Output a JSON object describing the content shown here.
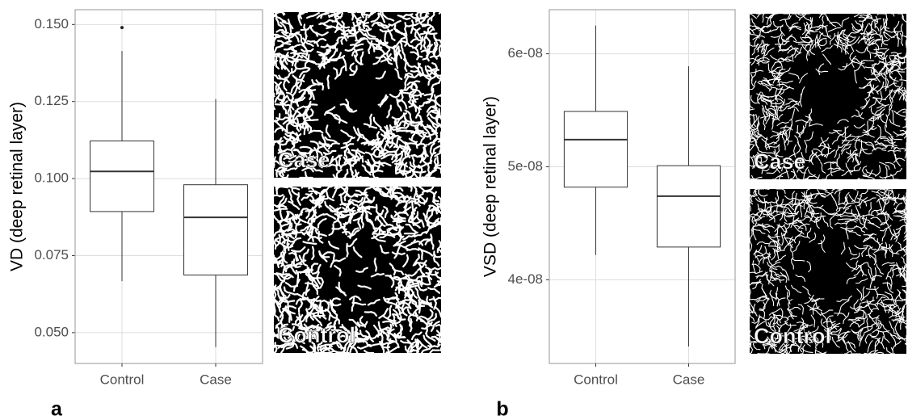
{
  "chart_data": [
    {
      "type": "box",
      "panel_label": "a",
      "ylabel": "VD (deep retinal layer)",
      "categories": [
        "Control",
        "Case"
      ],
      "whisker_low": [
        0.0667,
        0.0453
      ],
      "q1": [
        0.0893,
        0.0687
      ],
      "median": [
        0.1023,
        0.0874
      ],
      "q3": [
        0.1122,
        0.098
      ],
      "whisker_high": [
        0.1414,
        0.1258
      ],
      "outliers": [
        [
          0.149
        ],
        []
      ],
      "ylim": [
        0.04,
        0.1548
      ],
      "yticks": [
        {
          "value": 0.05,
          "label": "0.050"
        },
        0.075,
        {
          "value": 0.1,
          "label": "0.100"
        },
        0.125,
        {
          "value": 0.15,
          "label": "0.150"
        }
      ],
      "grid": true,
      "images": [
        "Case",
        "Control"
      ]
    },
    {
      "type": "box",
      "panel_label": "b",
      "ylabel": "VSD (deep retinal layer)",
      "categories": [
        "Control",
        "Case"
      ],
      "whisker_low": [
        4.22e-08,
        3.41e-08
      ],
      "q1": [
        4.82e-08,
        4.29e-08
      ],
      "median": [
        5.24e-08,
        4.74e-08
      ],
      "q3": [
        5.49e-08,
        5.01e-08
      ],
      "whisker_high": [
        6.25e-08,
        5.89e-08
      ],
      "outliers": [
        [],
        []
      ],
      "ylim": [
        3.26e-08,
        6.39e-08
      ],
      "yticks": [
        {
          "value": 4e-08,
          "label": "4e-08"
        },
        {
          "value": 5e-08,
          "label": "5e-08"
        },
        {
          "value": 6e-08,
          "label": "6e-08"
        }
      ],
      "grid": true,
      "images": [
        "Case",
        "Control"
      ]
    }
  ]
}
